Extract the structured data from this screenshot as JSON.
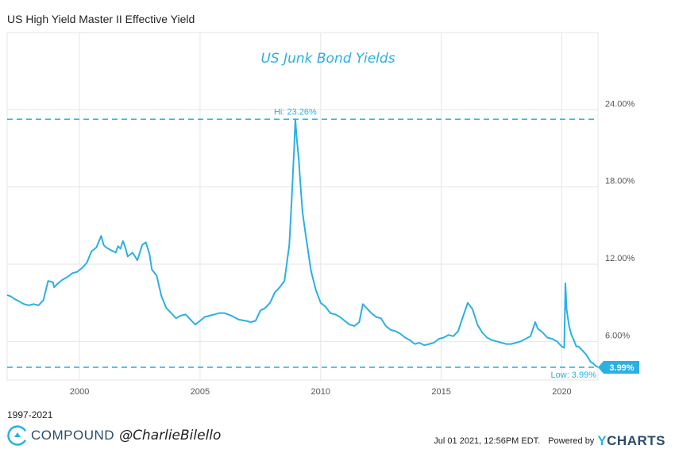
{
  "header": {
    "title": "US High Yield Master II Effective Yield"
  },
  "chart_data": {
    "type": "line",
    "title": "US High Yield Master II Effective Yield",
    "annotation_title": "US Junk Bond Yields",
    "x_unit": "year",
    "xlim": [
      1997.0,
      2021.5
    ],
    "ylim": [
      3.0,
      30.0
    ],
    "x_ticks": [
      2000,
      2005,
      2010,
      2015,
      2020
    ],
    "x_tick_labels": [
      "2000",
      "2005",
      "2010",
      "2015",
      "2020"
    ],
    "y_ticks": [
      6,
      12,
      18,
      24
    ],
    "y_tick_labels": [
      "6.00%",
      "12.00%",
      "18.00%",
      "24.00%"
    ],
    "grid": true,
    "color": "#2bb0e3",
    "high": {
      "value": 23.26,
      "label": "Hi: 23.26%",
      "x": 2008.95
    },
    "low": {
      "value": 3.99,
      "label": "Low: 3.99%",
      "x": 2021.5
    },
    "last_value_label": "3.99%",
    "series": [
      {
        "x": [
          1997.0,
          1997.15,
          1997.3,
          1997.5,
          1997.7,
          1997.9,
          1998.1,
          1998.3,
          1998.5,
          1998.7,
          1998.9,
          1998.95,
          1999.1,
          1999.3,
          1999.5,
          1999.7,
          1999.9,
          2000.1,
          2000.3,
          2000.5,
          2000.7,
          2000.9,
          2001.0,
          2001.1,
          2001.3,
          2001.5,
          2001.6,
          2001.7,
          2001.8,
          2001.9,
          2002.0,
          2002.2,
          2002.4,
          2002.6,
          2002.75,
          2002.9,
          2003.0,
          2003.2,
          2003.4,
          2003.6,
          2003.8,
          2004.0,
          2004.2,
          2004.4,
          2004.6,
          2004.8,
          2005.0,
          2005.2,
          2005.4,
          2005.6,
          2005.8,
          2006.0,
          2006.3,
          2006.6,
          2006.9,
          2007.1,
          2007.3,
          2007.5,
          2007.7,
          2007.9,
          2008.1,
          2008.3,
          2008.5,
          2008.7,
          2008.8,
          2008.9,
          2008.95,
          2009.0,
          2009.1,
          2009.15,
          2009.25,
          2009.4,
          2009.6,
          2009.8,
          2010.0,
          2010.2,
          2010.4,
          2010.6,
          2010.8,
          2011.0,
          2011.2,
          2011.4,
          2011.6,
          2011.75,
          2011.9,
          2012.1,
          2012.3,
          2012.5,
          2012.7,
          2012.9,
          2013.1,
          2013.3,
          2013.5,
          2013.7,
          2013.9,
          2014.1,
          2014.3,
          2014.5,
          2014.7,
          2014.9,
          2015.1,
          2015.3,
          2015.5,
          2015.7,
          2015.9,
          2016.1,
          2016.3,
          2016.5,
          2016.7,
          2016.9,
          2017.1,
          2017.3,
          2017.5,
          2017.7,
          2017.9,
          2018.1,
          2018.3,
          2018.5,
          2018.7,
          2018.9,
          2019.0,
          2019.2,
          2019.4,
          2019.6,
          2019.8,
          2020.0,
          2020.1,
          2020.15,
          2020.2,
          2020.3,
          2020.4,
          2020.5,
          2020.6,
          2020.7,
          2020.8,
          2020.9,
          2021.0,
          2021.1,
          2021.2,
          2021.3,
          2021.4,
          2021.5
        ],
        "values": [
          9.6,
          9.5,
          9.3,
          9.1,
          8.9,
          8.8,
          8.9,
          8.8,
          9.2,
          10.7,
          10.6,
          10.2,
          10.5,
          10.8,
          11.0,
          11.3,
          11.4,
          11.7,
          12.1,
          13.0,
          13.3,
          14.2,
          13.5,
          13.3,
          13.1,
          12.9,
          13.4,
          13.2,
          13.8,
          13.3,
          12.6,
          12.9,
          12.3,
          13.5,
          13.7,
          12.8,
          11.6,
          11.1,
          9.5,
          8.6,
          8.2,
          7.8,
          8.0,
          8.1,
          7.7,
          7.3,
          7.6,
          7.9,
          8.0,
          8.1,
          8.2,
          8.2,
          8.0,
          7.7,
          7.6,
          7.5,
          7.6,
          8.4,
          8.6,
          9.0,
          9.8,
          10.2,
          10.7,
          13.5,
          17.0,
          21.0,
          23.26,
          22.0,
          20.0,
          18.5,
          16.0,
          14.0,
          11.5,
          10.0,
          9.0,
          8.7,
          8.2,
          8.1,
          7.9,
          7.6,
          7.3,
          7.2,
          7.5,
          8.9,
          8.6,
          8.2,
          7.9,
          7.8,
          7.2,
          6.9,
          6.8,
          6.6,
          6.3,
          6.1,
          5.8,
          5.9,
          5.7,
          5.8,
          5.9,
          6.2,
          6.3,
          6.5,
          6.4,
          6.8,
          7.9,
          9.0,
          8.5,
          7.3,
          6.7,
          6.3,
          6.1,
          6.0,
          5.9,
          5.8,
          5.8,
          5.9,
          6.0,
          6.2,
          6.4,
          7.5,
          7.0,
          6.7,
          6.3,
          6.2,
          6.0,
          5.6,
          5.5,
          10.5,
          8.5,
          7.2,
          6.5,
          6.1,
          5.6,
          5.6,
          5.4,
          5.2,
          5.0,
          4.7,
          4.4,
          4.3,
          4.1,
          3.99
        ]
      }
    ]
  },
  "footer": {
    "date_range": "1997-2021",
    "brand_name": "COMPOUND",
    "handle": "@CharlieBilello",
    "timestamp": "Jul 01 2021, 12:56PM EDT.",
    "powered_by": "Powered by",
    "ycharts_y": "Y",
    "ycharts_rest": "CHARTS",
    "logo_icon": "compound-logo-icon"
  }
}
